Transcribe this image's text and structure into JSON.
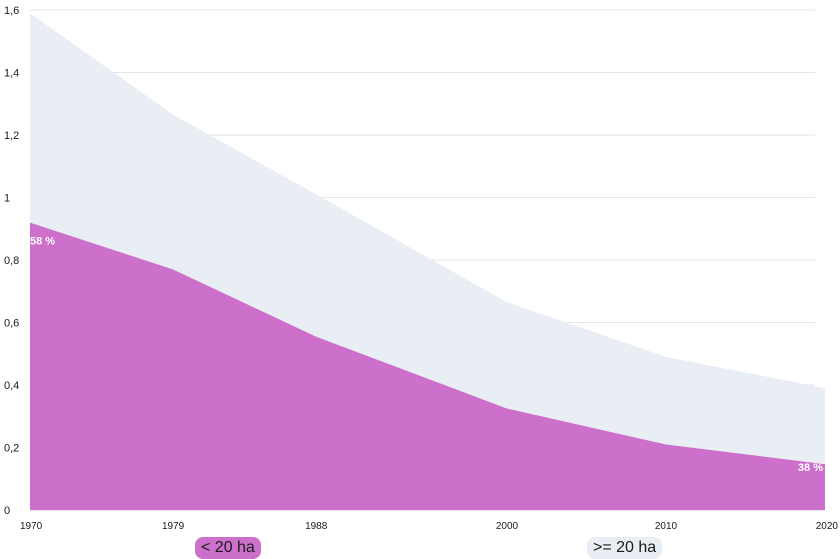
{
  "chart_data": {
    "type": "area",
    "stacked": true,
    "x": [
      1970,
      1979,
      1988,
      2000,
      2010,
      2020
    ],
    "series": [
      {
        "name": "< 20 ha",
        "values": [
          0.92,
          0.77,
          0.555,
          0.325,
          0.21,
          0.147
        ],
        "color": "#cd70cb"
      },
      {
        "name": ">= 20 ha",
        "values": [
          0.67,
          0.495,
          0.455,
          0.34,
          0.28,
          0.243
        ],
        "color": "#e9eef5"
      }
    ],
    "ylim": [
      0,
      1.6
    ],
    "yticks": [
      "0",
      "0,2",
      "0,4",
      "0,6",
      "0,8",
      "1",
      "1,2",
      "1,4",
      "1,6"
    ],
    "xticks": [
      "1970",
      "1979",
      "1988",
      "2000",
      "2010",
      "2020"
    ],
    "annotations": [
      {
        "text": "58 %",
        "x": 1970,
        "y": 0.85,
        "anchor": "start"
      },
      {
        "text": "38 %",
        "x": 2020,
        "y": 0.125,
        "anchor": "end"
      }
    ],
    "grid": true,
    "legend": "bottom"
  }
}
